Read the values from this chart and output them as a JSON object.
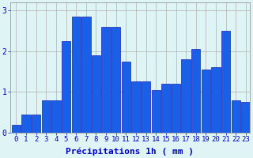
{
  "precipitation": [
    0.2,
    0.45,
    0.45,
    0.8,
    0.8,
    2.25,
    2.85,
    2.85,
    1.9,
    2.6,
    2.6,
    1.75,
    1.25,
    1.25,
    1.05,
    1.2,
    1.2,
    1.8,
    2.05,
    1.55,
    1.6,
    2.5,
    0.8,
    0.75
  ],
  "bar_color": "#1a5fe8",
  "bar_edge_color": "#0000aa",
  "background_color": "#dff4f4",
  "grid_color": "#b0b0b0",
  "xlabel": "Précipitations 1h ( mm )",
  "ylabel_ticks": [
    0,
    1,
    2,
    3
  ],
  "ylim": [
    0,
    3.2
  ],
  "tick_fontsize": 6.5,
  "axis_fontsize": 8
}
